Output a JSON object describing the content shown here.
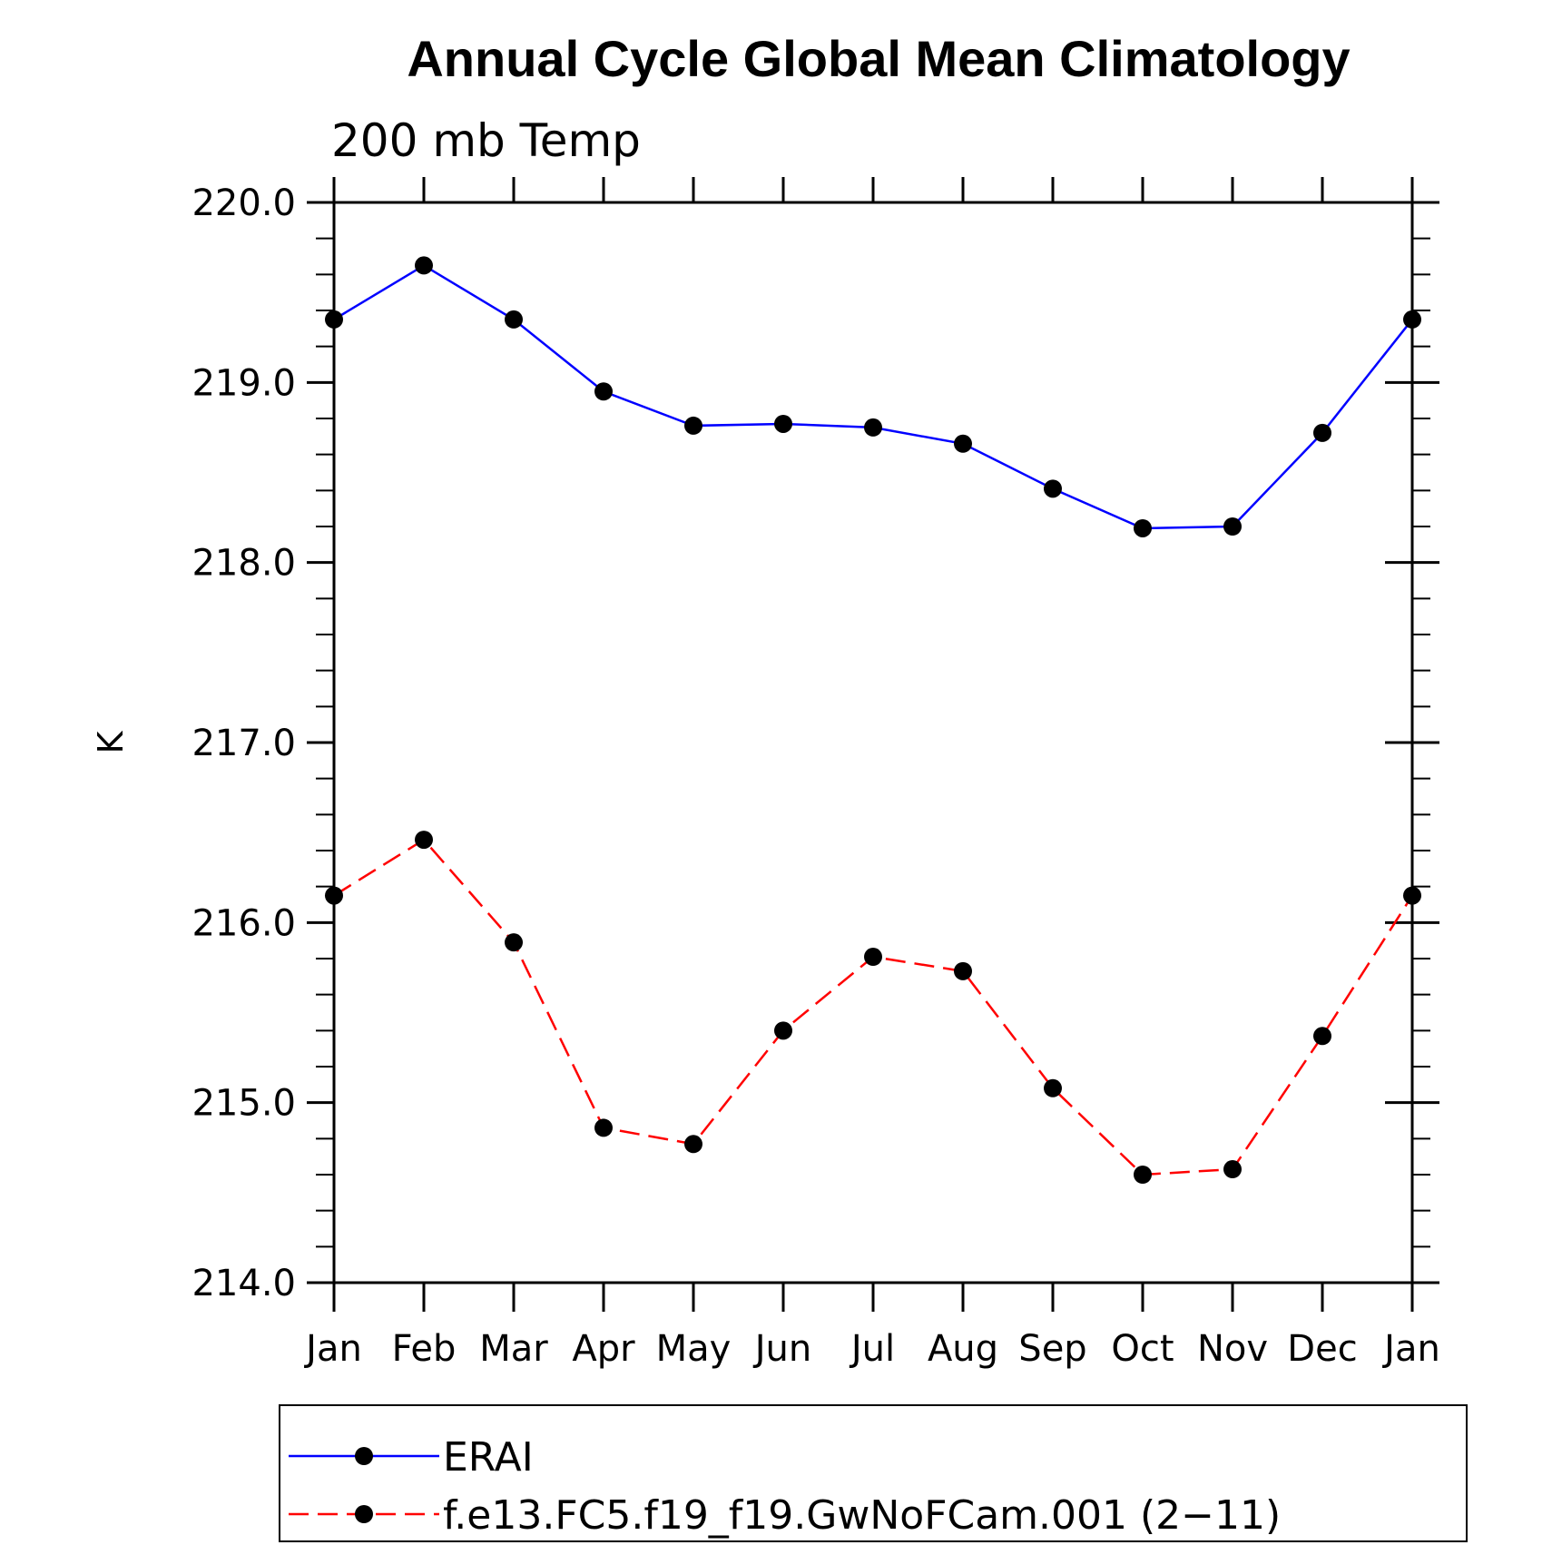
{
  "chart_data": {
    "type": "line",
    "title": "Annual Cycle Global Mean Climatology",
    "subtitle": "200 mb Temp",
    "xlabel": "",
    "ylabel": "K",
    "categories": [
      "Jan",
      "Feb",
      "Mar",
      "Apr",
      "May",
      "Jun",
      "Jul",
      "Aug",
      "Sep",
      "Oct",
      "Nov",
      "Dec",
      "Jan"
    ],
    "ylim": [
      214.0,
      220.0
    ],
    "yticks": [
      "214.0",
      "215.0",
      "216.0",
      "217.0",
      "218.0",
      "219.0",
      "220.0"
    ],
    "grid": false,
    "legend_position": "bottom",
    "series": [
      {
        "name": "ERAI",
        "color": "#0000ff",
        "line_style": "solid",
        "marker": "filled-circle",
        "values": [
          219.35,
          219.65,
          219.35,
          218.95,
          218.76,
          218.77,
          218.75,
          218.66,
          218.41,
          218.19,
          218.2,
          218.72,
          219.35
        ]
      },
      {
        "name": "f.e13.FC5.f19_f19.GwNoFCam.001 (2−11)",
        "color": "#ff0000",
        "line_style": "dashed",
        "marker": "filled-circle",
        "values": [
          216.15,
          216.46,
          215.89,
          214.86,
          214.77,
          215.4,
          215.81,
          215.73,
          215.08,
          214.6,
          214.63,
          215.37,
          216.15
        ]
      }
    ]
  }
}
